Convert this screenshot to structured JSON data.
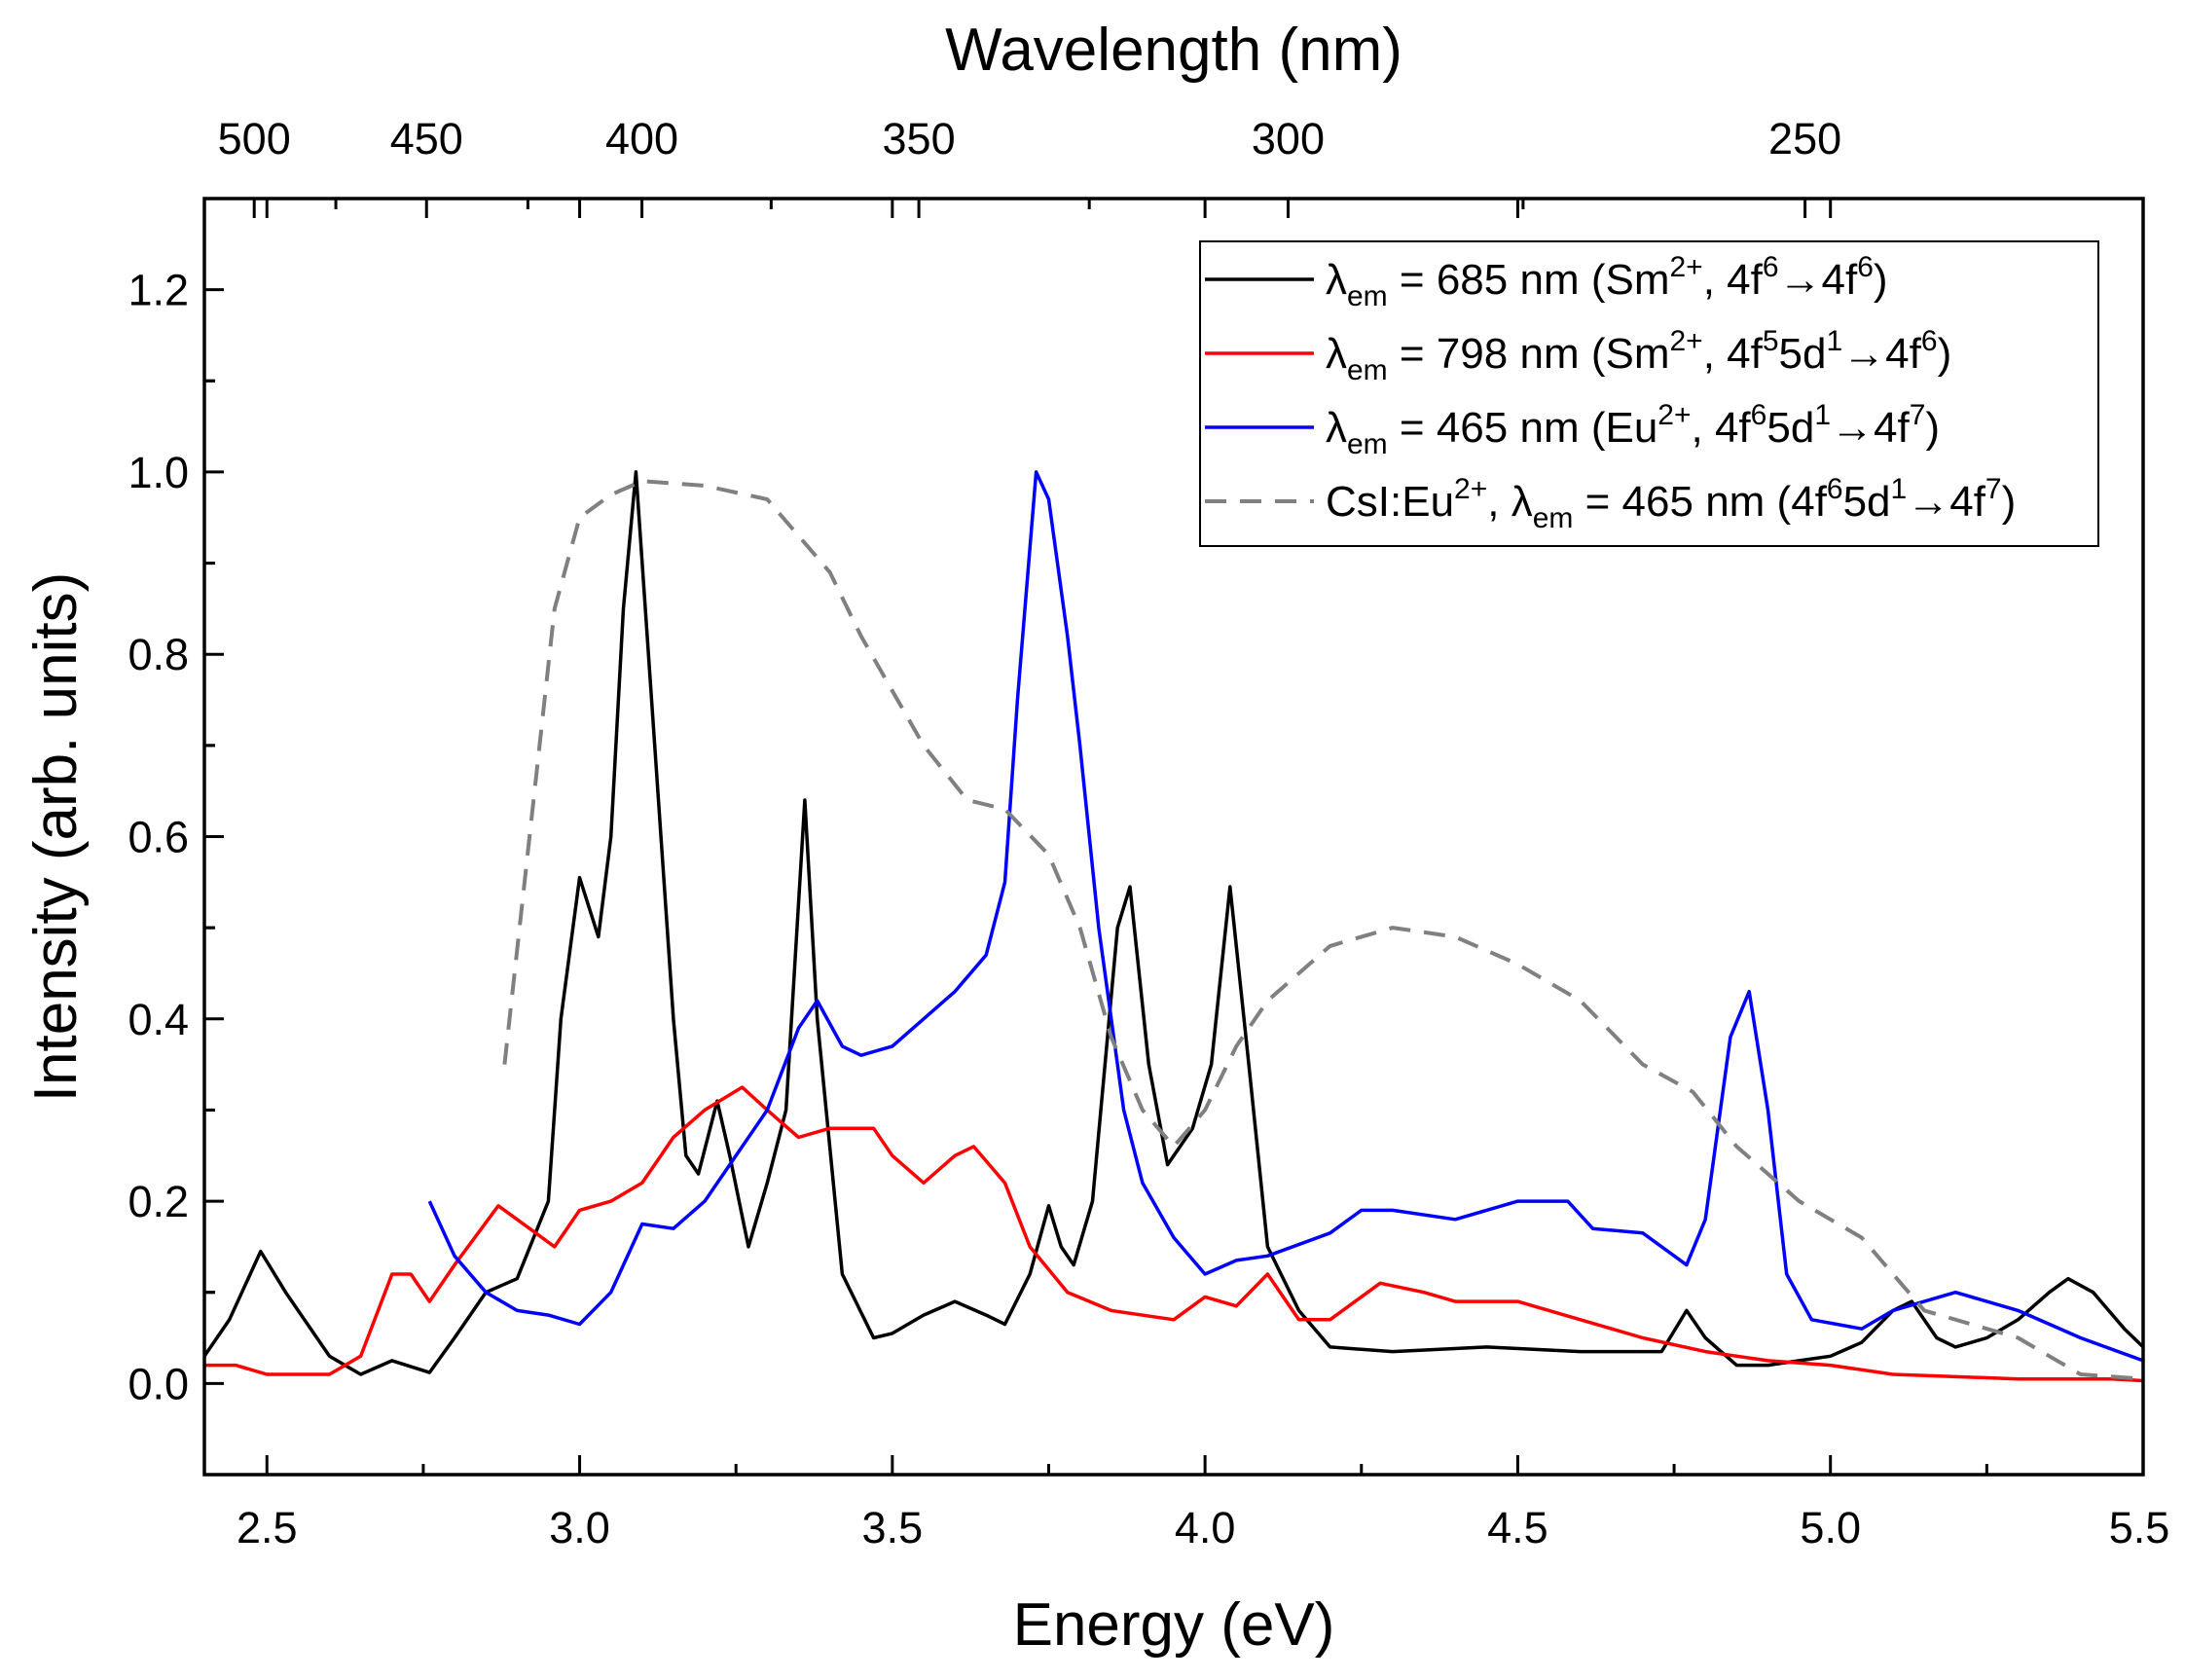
{
  "chart_data": {
    "type": "line",
    "title": "",
    "xlabel": "Energy (eV)",
    "ylabel": "Intensity (arb. units)",
    "top_xlabel": "Wavelength (nm)",
    "xlim": [
      2.4,
      5.5
    ],
    "ylim": [
      -0.1,
      1.3
    ],
    "x_ticks": [
      "2.5",
      "3.0",
      "3.5",
      "4.0",
      "4.5",
      "5.0",
      "5.5"
    ],
    "y_ticks": [
      "0.0",
      "0.2",
      "0.4",
      "0.6",
      "0.8",
      "1.0",
      "1.2"
    ],
    "top_ticks": [
      "500",
      "450",
      "400",
      "350",
      "300",
      "250"
    ],
    "top_tick_conversion": "E(eV) = 1239.84 / wavelength(nm)",
    "grid": false,
    "legend_position": "top-right",
    "series": [
      {
        "name": "λem = 685 nm (Sm2+, 4f6→4f6)",
        "color": "#000000",
        "dash": false,
        "legend_parts": [
          [
            "λ",
            ""
          ],
          [
            "em",
            "sub"
          ],
          [
            " = 685 nm (Sm",
            ""
          ],
          [
            "2+",
            "sup"
          ],
          [
            ", 4f",
            ""
          ],
          [
            "6",
            "sup"
          ],
          [
            "→4f",
            ""
          ],
          [
            "6",
            "sup"
          ],
          [
            ")",
            ""
          ]
        ],
        "x": [
          2.4,
          2.44,
          2.49,
          2.53,
          2.6,
          2.65,
          2.7,
          2.76,
          2.8,
          2.85,
          2.9,
          2.95,
          2.97,
          3.0,
          3.03,
          3.05,
          3.07,
          3.09,
          3.12,
          3.15,
          3.17,
          3.19,
          3.22,
          3.24,
          3.27,
          3.3,
          3.33,
          3.36,
          3.38,
          3.42,
          3.47,
          3.5,
          3.55,
          3.6,
          3.65,
          3.68,
          3.72,
          3.75,
          3.77,
          3.79,
          3.82,
          3.86,
          3.88,
          3.91,
          3.94,
          3.98,
          4.01,
          4.04,
          4.07,
          4.1,
          4.15,
          4.2,
          4.3,
          4.45,
          4.6,
          4.73,
          4.77,
          4.8,
          4.85,
          4.9,
          4.95,
          5.0,
          5.05,
          5.1,
          5.13,
          5.17,
          5.2,
          5.25,
          5.3,
          5.35,
          5.38,
          5.42,
          5.47,
          5.5
        ],
        "y": [
          0.03,
          0.07,
          0.145,
          0.1,
          0.03,
          0.01,
          0.025,
          0.012,
          0.05,
          0.1,
          0.115,
          0.2,
          0.4,
          0.555,
          0.49,
          0.6,
          0.85,
          1.0,
          0.7,
          0.4,
          0.25,
          0.23,
          0.31,
          0.25,
          0.15,
          0.22,
          0.3,
          0.64,
          0.4,
          0.12,
          0.05,
          0.055,
          0.075,
          0.09,
          0.075,
          0.065,
          0.12,
          0.195,
          0.15,
          0.13,
          0.2,
          0.5,
          0.545,
          0.35,
          0.24,
          0.28,
          0.35,
          0.545,
          0.35,
          0.15,
          0.08,
          0.04,
          0.035,
          0.04,
          0.035,
          0.035,
          0.08,
          0.05,
          0.02,
          0.02,
          0.025,
          0.03,
          0.045,
          0.08,
          0.09,
          0.05,
          0.04,
          0.05,
          0.07,
          0.1,
          0.115,
          0.1,
          0.06,
          0.04
        ]
      },
      {
        "name": "λem = 798 nm (Sm2+, 4f55d1→4f6)",
        "color": "#ff0000",
        "dash": false,
        "legend_parts": [
          [
            "λ",
            ""
          ],
          [
            "em",
            "sub"
          ],
          [
            " = 798 nm (Sm",
            ""
          ],
          [
            "2+",
            "sup"
          ],
          [
            ", 4f",
            ""
          ],
          [
            "5",
            "sup"
          ],
          [
            "5d",
            ""
          ],
          [
            "1",
            "sup"
          ],
          [
            "→4f",
            ""
          ],
          [
            "6",
            "sup"
          ],
          [
            ")",
            ""
          ]
        ],
        "x": [
          2.4,
          2.45,
          2.5,
          2.6,
          2.65,
          2.7,
          2.73,
          2.76,
          2.8,
          2.87,
          2.9,
          2.96,
          3.0,
          3.05,
          3.1,
          3.15,
          3.2,
          3.26,
          3.3,
          3.35,
          3.4,
          3.47,
          3.5,
          3.55,
          3.6,
          3.63,
          3.68,
          3.72,
          3.78,
          3.85,
          3.95,
          4.0,
          4.05,
          4.1,
          4.15,
          4.2,
          4.28,
          4.35,
          4.4,
          4.5,
          4.6,
          4.7,
          4.8,
          4.9,
          5.0,
          5.1,
          5.3,
          5.45,
          5.5
        ],
        "y": [
          0.02,
          0.02,
          0.01,
          0.01,
          0.03,
          0.12,
          0.12,
          0.09,
          0.13,
          0.195,
          0.18,
          0.15,
          0.19,
          0.2,
          0.22,
          0.27,
          0.3,
          0.325,
          0.3,
          0.27,
          0.28,
          0.28,
          0.25,
          0.22,
          0.25,
          0.26,
          0.22,
          0.15,
          0.1,
          0.08,
          0.07,
          0.095,
          0.085,
          0.12,
          0.07,
          0.07,
          0.11,
          0.1,
          0.09,
          0.09,
          0.07,
          0.05,
          0.035,
          0.025,
          0.02,
          0.01,
          0.005,
          0.005,
          0.003
        ]
      },
      {
        "name": "λem = 465 nm (Eu2+, 4f65d1→4f7)",
        "color": "#0000ff",
        "dash": false,
        "legend_parts": [
          [
            "λ",
            ""
          ],
          [
            "em",
            "sub"
          ],
          [
            " = 465 nm (Eu",
            ""
          ],
          [
            "2+",
            "sup"
          ],
          [
            ", 4f",
            ""
          ],
          [
            "6",
            "sup"
          ],
          [
            "5d",
            ""
          ],
          [
            "1",
            "sup"
          ],
          [
            "→4f",
            ""
          ],
          [
            "7",
            "sup"
          ],
          [
            ")",
            ""
          ]
        ],
        "x": [
          2.76,
          2.8,
          2.85,
          2.9,
          2.95,
          3.0,
          3.05,
          3.1,
          3.15,
          3.2,
          3.25,
          3.3,
          3.35,
          3.38,
          3.42,
          3.45,
          3.5,
          3.55,
          3.6,
          3.65,
          3.68,
          3.7,
          3.73,
          3.75,
          3.78,
          3.8,
          3.83,
          3.87,
          3.9,
          3.95,
          4.0,
          4.05,
          4.1,
          4.2,
          4.25,
          4.3,
          4.4,
          4.5,
          4.58,
          4.62,
          4.7,
          4.77,
          4.8,
          4.84,
          4.87,
          4.9,
          4.93,
          4.97,
          5.05,
          5.1,
          5.2,
          5.3,
          5.4,
          5.5
        ],
        "y": [
          0.2,
          0.14,
          0.1,
          0.08,
          0.075,
          0.065,
          0.1,
          0.175,
          0.17,
          0.2,
          0.25,
          0.3,
          0.39,
          0.42,
          0.37,
          0.36,
          0.37,
          0.4,
          0.43,
          0.47,
          0.55,
          0.75,
          1.0,
          0.97,
          0.82,
          0.7,
          0.5,
          0.3,
          0.22,
          0.16,
          0.12,
          0.135,
          0.14,
          0.165,
          0.19,
          0.19,
          0.18,
          0.2,
          0.2,
          0.17,
          0.165,
          0.13,
          0.18,
          0.38,
          0.43,
          0.3,
          0.12,
          0.07,
          0.06,
          0.08,
          0.1,
          0.08,
          0.05,
          0.025
        ]
      },
      {
        "name": "CsI:Eu2+, λem = 465 nm (4f65d1→4f7)",
        "color": "#808080",
        "dash": true,
        "legend_parts": [
          [
            "CsI:Eu",
            ""
          ],
          [
            "2+",
            "sup"
          ],
          [
            ", λ",
            ""
          ],
          [
            "em",
            "sub"
          ],
          [
            " = 465 nm (4f",
            ""
          ],
          [
            "6",
            "sup"
          ],
          [
            "5d",
            ""
          ],
          [
            "1",
            "sup"
          ],
          [
            "→4f",
            ""
          ],
          [
            "7",
            "sup"
          ],
          [
            ")",
            ""
          ]
        ],
        "x": [
          2.88,
          2.92,
          2.96,
          3.0,
          3.05,
          3.1,
          3.2,
          3.3,
          3.35,
          3.4,
          3.45,
          3.5,
          3.55,
          3.62,
          3.68,
          3.75,
          3.8,
          3.85,
          3.9,
          3.95,
          4.0,
          4.05,
          4.1,
          4.2,
          4.3,
          4.4,
          4.5,
          4.6,
          4.7,
          4.78,
          4.85,
          4.95,
          5.05,
          5.15,
          5.3,
          5.4,
          5.5
        ],
        "y": [
          0.35,
          0.6,
          0.85,
          0.95,
          0.975,
          0.99,
          0.985,
          0.97,
          0.93,
          0.89,
          0.82,
          0.76,
          0.7,
          0.64,
          0.63,
          0.58,
          0.5,
          0.38,
          0.3,
          0.26,
          0.3,
          0.37,
          0.42,
          0.48,
          0.5,
          0.49,
          0.46,
          0.42,
          0.35,
          0.32,
          0.26,
          0.2,
          0.16,
          0.08,
          0.05,
          0.01,
          0.005
        ]
      }
    ]
  }
}
